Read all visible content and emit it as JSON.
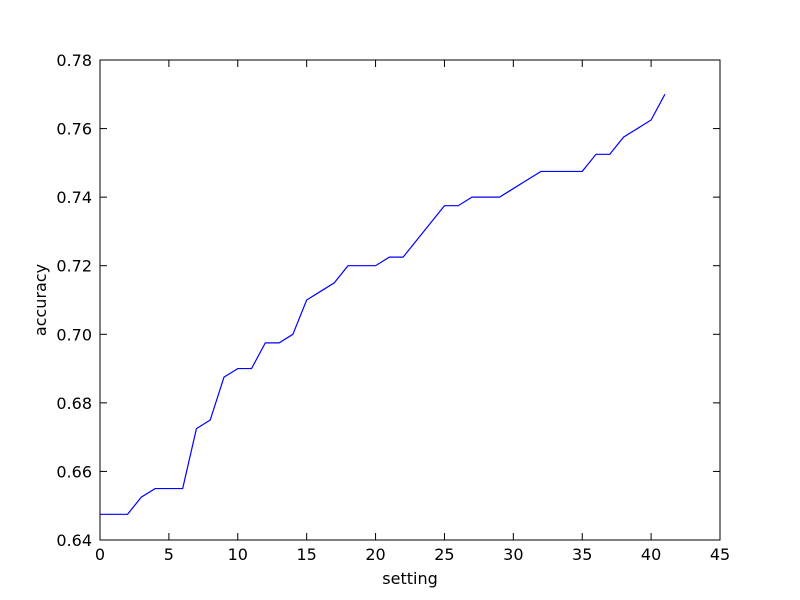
{
  "chart_data": {
    "type": "line",
    "title": "",
    "xlabel": "setting",
    "ylabel": "accuracy",
    "xlim": [
      0,
      45
    ],
    "ylim": [
      0.64,
      0.78
    ],
    "xticks": [
      0,
      5,
      10,
      15,
      20,
      25,
      30,
      35,
      40,
      45
    ],
    "yticks": [
      0.64,
      0.66,
      0.68,
      0.7,
      0.72,
      0.74,
      0.76,
      0.78
    ],
    "xtick_labels": [
      "0",
      "5",
      "10",
      "15",
      "20",
      "25",
      "30",
      "35",
      "40",
      "45"
    ],
    "ytick_labels": [
      "0.64",
      "0.66",
      "0.68",
      "0.70",
      "0.72",
      "0.74",
      "0.76",
      "0.78"
    ],
    "grid": false,
    "legend": "none",
    "series": [
      {
        "color": "#0000ff",
        "x": [
          0,
          1,
          2,
          3,
          4,
          5,
          6,
          7,
          8,
          9,
          10,
          11,
          12,
          13,
          14,
          15,
          16,
          17,
          18,
          19,
          20,
          21,
          22,
          23,
          24,
          25,
          26,
          27,
          28,
          29,
          30,
          31,
          32,
          33,
          34,
          35,
          36,
          37,
          38,
          39,
          40,
          41
        ],
        "y": [
          0.6475,
          0.6475,
          0.6475,
          0.6525,
          0.655,
          0.655,
          0.655,
          0.6725,
          0.675,
          0.6875,
          0.69,
          0.69,
          0.6975,
          0.6975,
          0.7,
          0.71,
          0.7125,
          0.715,
          0.72,
          0.72,
          0.72,
          0.7225,
          0.7225,
          0.7275,
          0.7325,
          0.7375,
          0.7375,
          0.74,
          0.74,
          0.74,
          0.7425,
          0.745,
          0.7475,
          0.7475,
          0.7475,
          0.7475,
          0.7525,
          0.7525,
          0.7575,
          0.76,
          0.7625,
          0.77
        ]
      }
    ]
  }
}
